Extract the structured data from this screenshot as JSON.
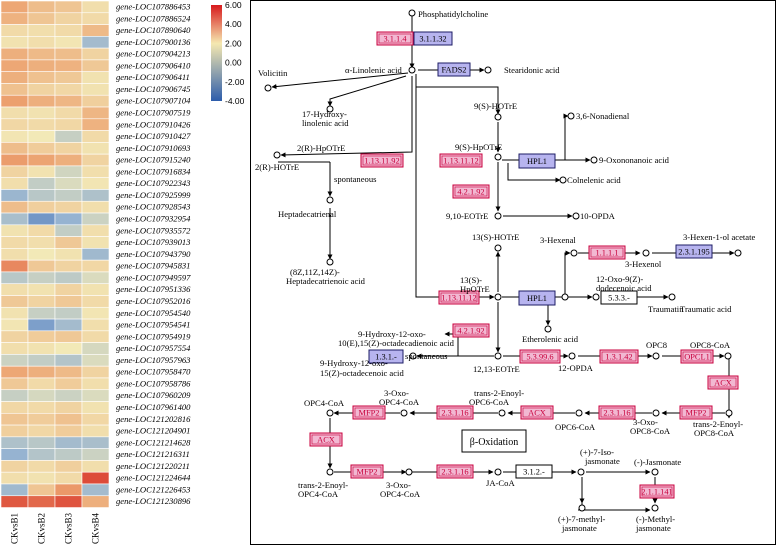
{
  "colors": {
    "ec_red_fill": "#f2b8d2",
    "ec_red_stroke": "#c8003c",
    "ec_red_text": "#c8003c",
    "ec_blue_fill": "#b7b4ef",
    "ec_blue_stroke": "#1c1c66",
    "ec_white_fill": "#ffffff",
    "line": "#000000"
  },
  "heatmap": {
    "columns": [
      "CKvsB1",
      "CKvsB2",
      "CKvsB3",
      "CKvsB4"
    ],
    "legend": {
      "ticks": [
        "6.00",
        "4.00",
        "2.00",
        "0.00",
        "-2.00",
        "-4.00"
      ],
      "tick_values": [
        6,
        4,
        2,
        0,
        -2,
        -4
      ],
      "min": -4,
      "max": 6
    },
    "genes": [
      "gene-LOC107886453",
      "gene-LOC107886524",
      "gene-LOC107890640",
      "gene-LOC107900136",
      "gene-LOC107904213",
      "gene-LOC107906410",
      "gene-LOC107906411",
      "gene-LOC107906745",
      "gene-LOC107907104",
      "gene-LOC107907519",
      "gene-LOC107910426",
      "gene-LOC107910427",
      "gene-LOC107910693",
      "gene-LOC107915240",
      "gene-LOC107916834",
      "gene-LOC107922343",
      "gene-LOC107925999",
      "gene-LOC107928543",
      "gene-LOC107932954",
      "gene-LOC107935572",
      "gene-LOC107939013",
      "gene-LOC107943790",
      "gene-LOC107945831",
      "gene-LOC107949597",
      "gene-LOC107951336",
      "gene-LOC107952016",
      "gene-LOC107954540",
      "gene-LOC107954541",
      "gene-LOC107954919",
      "gene-LOC107957554",
      "gene-LOC107957963",
      "gene-LOC107958470",
      "gene-LOC107958786",
      "gene-LOC107960209",
      "gene-LOC107961400",
      "gene-LOC121202816",
      "gene-LOC121204901",
      "gene-LOC121214628",
      "gene-LOC121216311",
      "gene-LOC121220211",
      "gene-LOC121224644",
      "gene-LOC121226453",
      "gene-LOC121230896"
    ],
    "values": [
      [
        1.8,
        1.2,
        1.0,
        0.3
      ],
      [
        1.5,
        1.0,
        0.6,
        0.4
      ],
      [
        0.4,
        0.3,
        0.4,
        1.3
      ],
      [
        0.2,
        0.3,
        0.1,
        -1.6
      ],
      [
        1.6,
        1.3,
        1.2,
        0.6
      ],
      [
        1.8,
        1.6,
        1.5,
        0.9
      ],
      [
        1.6,
        1.1,
        0.9,
        0.2
      ],
      [
        1.1,
        0.6,
        0.5,
        0.2
      ],
      [
        2.0,
        1.6,
        1.4,
        0.7
      ],
      [
        0.3,
        0.2,
        0.4,
        1.4
      ],
      [
        0.5,
        0.4,
        0.5,
        1.5
      ],
      [
        0.1,
        0.0,
        -0.9,
        0.4
      ],
      [
        1.2,
        0.8,
        0.6,
        0.2
      ],
      [
        2.1,
        1.9,
        1.6,
        0.6
      ],
      [
        0.6,
        0.2,
        -0.7,
        0.3
      ],
      [
        0.3,
        -1.0,
        -0.5,
        0.1
      ],
      [
        -1.8,
        -1.2,
        -1.0,
        -1.4
      ],
      [
        1.2,
        0.7,
        0.6,
        0.3
      ],
      [
        -1.5,
        -2.6,
        -1.9,
        -0.8
      ],
      [
        0.2,
        0.4,
        -1.0,
        0.3
      ],
      [
        0.4,
        0.3,
        0.9,
        0.2
      ],
      [
        0.3,
        0.0,
        0.2,
        -1.7
      ],
      [
        2.6,
        0.9,
        0.6,
        0.5
      ],
      [
        -1.2,
        -0.9,
        -1.1,
        -0.5
      ],
      [
        0.3,
        0.2,
        0.6,
        0.2
      ],
      [
        0.9,
        0.6,
        0.9,
        0.4
      ],
      [
        0.2,
        -0.9,
        -1.0,
        0.1
      ],
      [
        0.1,
        -2.4,
        -1.6,
        0.3
      ],
      [
        0.6,
        0.8,
        0.9,
        0.4
      ],
      [
        0.3,
        0.2,
        0.0,
        -0.6
      ],
      [
        -0.8,
        -1.0,
        -1.3,
        -0.5
      ],
      [
        1.8,
        1.6,
        1.3,
        0.6
      ],
      [
        0.9,
        0.4,
        0.8,
        0.3
      ],
      [
        -0.9,
        -0.6,
        -0.8,
        -0.5
      ],
      [
        0.5,
        0.4,
        0.6,
        0.2
      ],
      [
        1.0,
        0.8,
        1.1,
        0.5
      ],
      [
        0.7,
        0.5,
        0.8,
        0.3
      ],
      [
        -1.4,
        -1.2,
        -1.6,
        -1.5
      ],
      [
        -1.9,
        -1.3,
        -1.1,
        -0.8
      ],
      [
        0.6,
        0.4,
        0.7,
        0.3
      ],
      [
        0.3,
        0.2,
        0.4,
        4.2
      ],
      [
        -1.7,
        1.0,
        2.2,
        -1.6
      ],
      [
        3.8,
        3.4,
        3.9,
        1.6
      ]
    ]
  },
  "pathway": {
    "beta_oxidation": "β-Oxidation",
    "ecs": [
      {
        "text": "3.1.1.4",
        "style": "red"
      },
      {
        "text": "3.1.1.32",
        "style": "blue"
      },
      {
        "text": "FADS2",
        "style": "blue"
      },
      {
        "text": "1.13.11.92",
        "style": "red"
      },
      {
        "text": "1.13.11.12",
        "style": "red"
      },
      {
        "text": "HPL1",
        "style": "blue"
      },
      {
        "text": "4.2.1.92",
        "style": "red"
      },
      {
        "text": "1.1.1.1",
        "style": "red"
      },
      {
        "text": "2.3.1.195",
        "style": "blue"
      },
      {
        "text": "1.13.11.12",
        "style": "red"
      },
      {
        "text": "HPL1",
        "style": "blue"
      },
      {
        "text": "5.3.3.-",
        "style": "white"
      },
      {
        "text": "4.2.1.92",
        "style": "red"
      },
      {
        "text": "1.3.1.-",
        "style": "blue"
      },
      {
        "text": "5.3.99.6",
        "style": "red"
      },
      {
        "text": "1.3.1.42",
        "style": "red"
      },
      {
        "text": "OPCL1",
        "style": "red"
      },
      {
        "text": "ACX",
        "style": "red"
      },
      {
        "text": "2.3.1.16",
        "style": "red"
      },
      {
        "text": "MFP2",
        "style": "red"
      },
      {
        "text": "ACX",
        "style": "red"
      },
      {
        "text": "2.3.1.16",
        "style": "red"
      },
      {
        "text": "MFP2",
        "style": "red"
      },
      {
        "text": "2.3.1.16",
        "style": "red"
      },
      {
        "text": "MFP2",
        "style": "red"
      },
      {
        "text": "ACX",
        "style": "red"
      },
      {
        "text": "3.1.2.-",
        "style": "white"
      },
      {
        "text": "2.1.1.141",
        "style": "red"
      }
    ],
    "compounds": [
      "Phosphatidylcholine",
      "α-Linolenic acid",
      "Stearidonic acid",
      "Volicitin",
      "17-Hydroxy-",
      "linolenic acid",
      "9(S)-HOTrE",
      "3,6-Nonadienal",
      "2(R)-HpOTrE",
      "2(R)-HOTrE",
      "spontaneous",
      "9(S)-HpOTrE",
      "9-Oxononanoic acid",
      "Colnelenic acid",
      "Heptadecatrienal",
      "9,10-EOTrE",
      "10-OPDA",
      "(8Z,11Z,14Z)-",
      "Heptadecatrienoic acid",
      "13(S)-HOTrE",
      "3-Hexenal",
      "3-Hexen-1-ol acetate",
      "3-Hexenol",
      "13(S)-",
      "HpOTrE",
      "12-Oxo-9(Z)-",
      "dodecenoic acid",
      "Traumatin",
      "Traumatic acid",
      "Etherolenic acid",
      "9-Hydroxy-12-oxo-",
      "10(E),15(Z)-octadecadienoic acid",
      "spontaneous",
      "9-Hydroxy-12-oxo-",
      "15(Z)-octadecenoic acid",
      "12,13-EOTrE",
      "12-OPDA",
      "OPC8",
      "OPC8-CoA",
      "OPC4-CoA",
      "3-Oxo-",
      "OPC4-CoA",
      "trans-2-Enoyl-",
      "OPC6-CoA",
      "OPC6-CoA",
      "3-Oxo-",
      "OPC8-CoA",
      "trans-2-Enoyl-",
      "OPC8-CoA",
      "trans-2-Enoyl-",
      "OPC4-CoA",
      "3-Oxo-",
      "OPC4-CoA",
      "JA-CoA",
      "(+)-7-Iso-",
      "jasmonate",
      "(-)-Jasmonate",
      "(+)-7-methyl-",
      "jasmonate",
      "(-)-Methyl-",
      "jasmonate"
    ]
  }
}
